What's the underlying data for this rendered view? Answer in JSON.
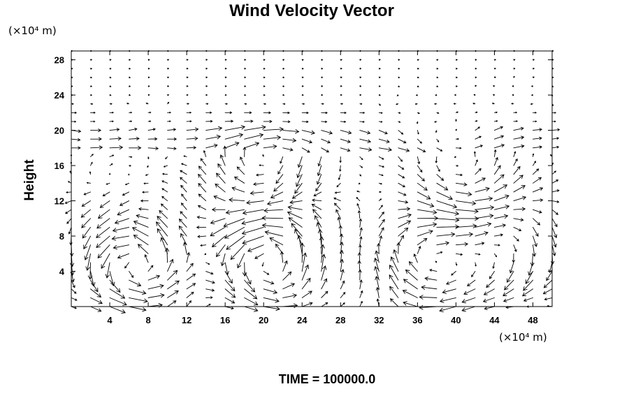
{
  "chart_data": {
    "type": "vector-field",
    "title": "Wind Velocity Vector",
    "xlabel": "",
    "ylabel": "Height",
    "x_unit_label": "(×10⁴ m)",
    "y_unit_label": "(×10⁴ m)",
    "xlim": [
      0,
      50
    ],
    "ylim": [
      0,
      29
    ],
    "x_ticks": [
      4,
      8,
      12,
      16,
      20,
      24,
      28,
      32,
      36,
      40,
      44,
      48
    ],
    "y_ticks": [
      4,
      8,
      12,
      16,
      20,
      24,
      28
    ],
    "grid": false,
    "grid_spacing_x": 2,
    "grid_spacing_y": 1,
    "time_label": "TIME = 100000.0",
    "arrow_color": "#000000",
    "vortices": [
      {
        "x": 7,
        "y": 5,
        "strength": 1.0
      },
      {
        "x": 21,
        "y": 5,
        "strength": 1.0
      },
      {
        "x": 37,
        "y": 5,
        "strength": -0.8
      },
      {
        "x": 45,
        "y": 6,
        "strength": -0.6
      },
      {
        "x": 20,
        "y": 17,
        "strength": -0.6
      },
      {
        "x": 40,
        "y": 17,
        "strength": 0.6
      }
    ]
  }
}
